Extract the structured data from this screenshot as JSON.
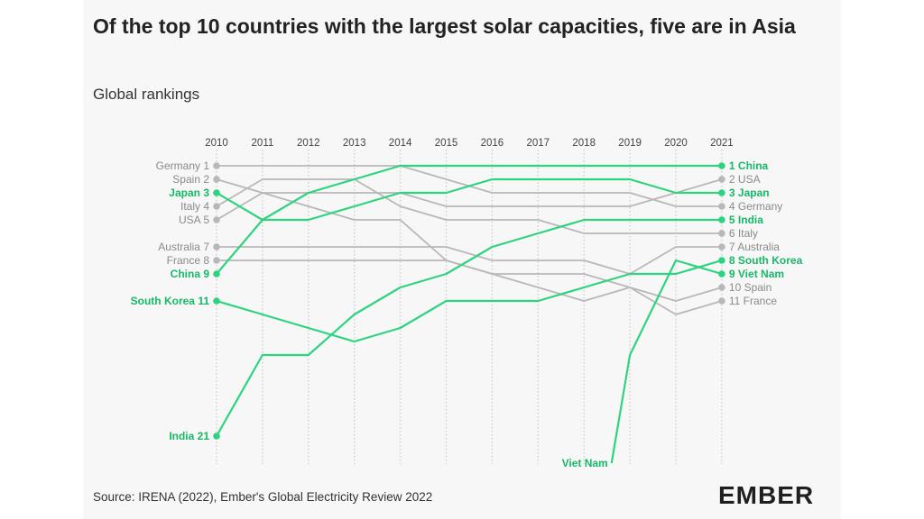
{
  "title": "Of the top 10 countries with the largest solar capacities, five are in Asia",
  "subtitle": "Global rankings",
  "source": "Source: IRENA (2022), Ember's Global Electricity Review 2022",
  "logo": "EMBER",
  "colors": {
    "highlight": "#2dd480",
    "highlight_text": "#17b868",
    "other": "#b8b8b8",
    "other_text": "#8a8a8a",
    "grid": "#cfcfcf",
    "background": "#f7f7f7"
  },
  "chart_data": {
    "type": "bump",
    "title": "Of the top 10 countries with the largest solar capacities, five are in Asia",
    "subtitle": "Global rankings",
    "x": [
      2010,
      2011,
      2012,
      2013,
      2014,
      2015,
      2016,
      2017,
      2018,
      2019,
      2020,
      2021
    ],
    "y_meaning": "rank (1 = largest solar capacity)",
    "series": [
      {
        "name": "China",
        "highlight": true,
        "ranks": [
          9,
          5,
          3,
          2,
          1,
          1,
          1,
          1,
          1,
          1,
          1,
          1
        ],
        "start_label": "China 9",
        "end_label": "1 China"
      },
      {
        "name": "USA",
        "highlight": false,
        "ranks": [
          5,
          3,
          3,
          3,
          3,
          4,
          4,
          4,
          4,
          4,
          3,
          2
        ],
        "start_label": "USA 5",
        "end_label": "2 USA"
      },
      {
        "name": "Japan",
        "highlight": true,
        "ranks": [
          3,
          5,
          5,
          4,
          3,
          3,
          2,
          2,
          2,
          2,
          3,
          3
        ],
        "start_label": "Japan 3",
        "end_label": "3 Japan"
      },
      {
        "name": "Germany",
        "highlight": false,
        "ranks": [
          1,
          1,
          1,
          1,
          1,
          2,
          3,
          3,
          3,
          3,
          4,
          4
        ],
        "start_label": "Germany 1",
        "end_label": "4 Germany"
      },
      {
        "name": "India",
        "highlight": true,
        "ranks": [
          21,
          15,
          15,
          12,
          10,
          9,
          7,
          6,
          5,
          5,
          5,
          5
        ],
        "start_label": "India 21",
        "end_label": "5 India"
      },
      {
        "name": "Italy",
        "highlight": false,
        "ranks": [
          4,
          2,
          2,
          2,
          4,
          5,
          5,
          5,
          6,
          6,
          6,
          6
        ],
        "start_label": "Italy 4",
        "end_label": "6 Italy"
      },
      {
        "name": "Australia",
        "highlight": false,
        "ranks": [
          7,
          7,
          7,
          7,
          7,
          7,
          8,
          8,
          8,
          9,
          7,
          7
        ],
        "start_label": "Australia 7",
        "end_label": "7 Australia"
      },
      {
        "name": "South Korea",
        "highlight": true,
        "ranks": [
          11,
          12,
          13,
          14,
          13,
          11,
          11,
          11,
          10,
          9,
          9,
          8
        ],
        "start_label": "South Korea 11",
        "end_label": "8 South Korea"
      },
      {
        "name": "Viet Nam",
        "highlight": true,
        "ranks": [
          null,
          null,
          null,
          null,
          null,
          null,
          null,
          null,
          null,
          15,
          8,
          9
        ],
        "start_label": "Viet Nam",
        "start_value": 23,
        "start_year": 2018.6,
        "end_label": "9 Viet Nam"
      },
      {
        "name": "Spain",
        "highlight": false,
        "ranks": [
          2,
          3,
          4,
          5,
          5,
          8,
          9,
          9,
          9,
          10,
          11,
          10
        ],
        "start_label": "Spain 2",
        "end_label": "10 Spain"
      },
      {
        "name": "France",
        "highlight": false,
        "ranks": [
          8,
          8,
          8,
          8,
          8,
          8,
          9,
          10,
          11,
          10,
          12,
          11
        ],
        "start_label": "France 8",
        "end_label": "11 France"
      }
    ]
  }
}
